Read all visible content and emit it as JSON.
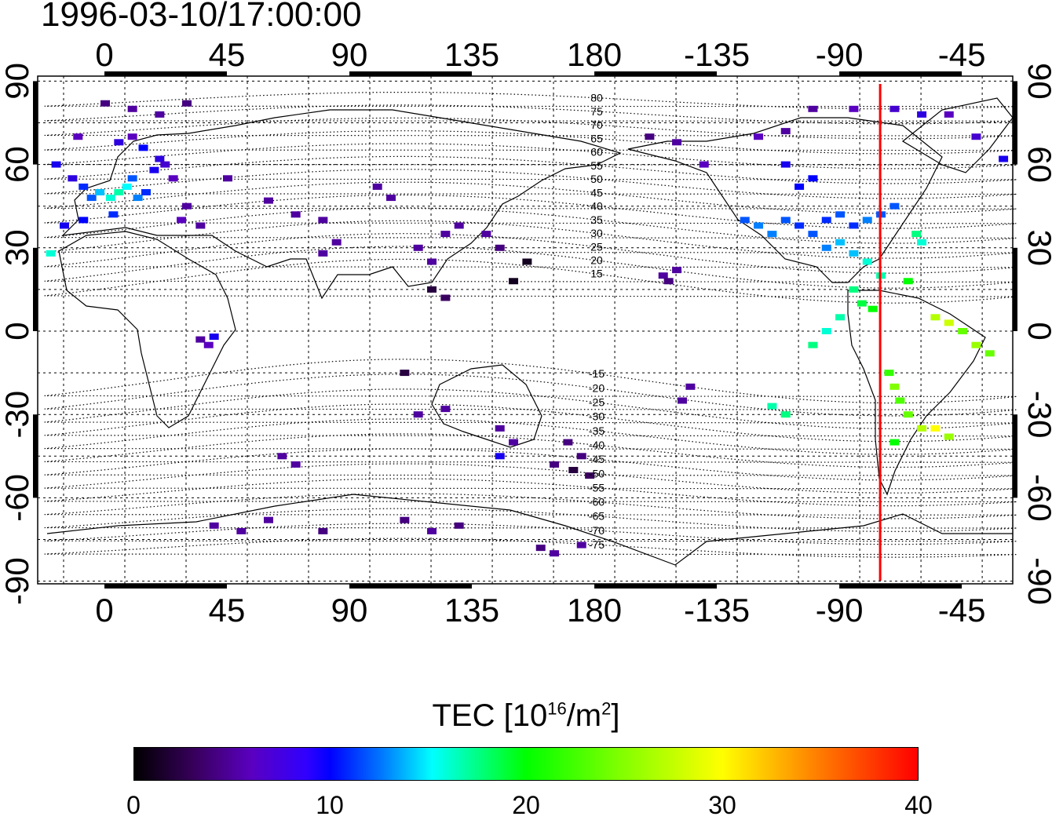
{
  "title": "1996-03-10/17:00:00",
  "chart_data": {
    "type": "heatmap",
    "title": "1996-03-10/17:00:00",
    "projection": "equirectangular",
    "x_ticks": [
      "0",
      "45",
      "90",
      "135",
      "180",
      "-135",
      "-90",
      "-45"
    ],
    "x_tick_values": [
      0,
      45,
      90,
      135,
      180,
      225,
      270,
      315
    ],
    "y_ticks": [
      "90",
      "60",
      "30",
      "0",
      "-30",
      "-60",
      "-90"
    ],
    "y_tick_values": [
      90,
      60,
      30,
      0,
      -30,
      -60,
      -90
    ],
    "lon_range": [
      -25,
      335
    ],
    "lat_range": [
      -90,
      90
    ],
    "marker_line_lon": -75,
    "marker_line_color": "#ff0000",
    "magnetic_contour_labels": [
      "80",
      "75",
      "70",
      "65",
      "60",
      "55",
      "50",
      "45",
      "40",
      "35",
      "30",
      "25",
      "20",
      "15",
      "-15",
      "-20",
      "-25",
      "-30",
      "-35",
      "-40",
      "-45",
      "-50",
      "-55",
      "-60",
      "-65",
      "-70",
      "-75"
    ],
    "magnetic_contour_values": [
      80,
      75,
      70,
      65,
      60,
      55,
      50,
      45,
      40,
      35,
      30,
      25,
      20,
      15,
      -15,
      -20,
      -25,
      -30,
      -35,
      -40,
      -45,
      -50,
      -55,
      -60,
      -65,
      -70,
      -75
    ],
    "tec_points": [
      [
        -18,
        60,
        9
      ],
      [
        -12,
        55,
        8
      ],
      [
        -8,
        52,
        11
      ],
      [
        -5,
        48,
        12
      ],
      [
        -2,
        50,
        14
      ],
      [
        2,
        48,
        16
      ],
      [
        5,
        50,
        17
      ],
      [
        8,
        52,
        15
      ],
      [
        10,
        55,
        12
      ],
      [
        12,
        48,
        13
      ],
      [
        15,
        50,
        11
      ],
      [
        18,
        58,
        9
      ],
      [
        20,
        62,
        8
      ],
      [
        22,
        60,
        7
      ],
      [
        25,
        55,
        6
      ],
      [
        14,
        66,
        10
      ],
      [
        10,
        70,
        6
      ],
      [
        5,
        68,
        8
      ],
      [
        -15,
        38,
        9
      ],
      [
        -20,
        28,
        16
      ],
      [
        28,
        40,
        6
      ],
      [
        30,
        45,
        5
      ],
      [
        35,
        38,
        5
      ],
      [
        3,
        42,
        11
      ],
      [
        -8,
        40,
        10
      ],
      [
        10,
        80,
        5
      ],
      [
        20,
        78,
        5
      ],
      [
        30,
        82,
        4
      ],
      [
        0,
        82,
        4
      ],
      [
        -10,
        70,
        6
      ],
      [
        40,
        -2,
        9
      ],
      [
        38,
        -5,
        6
      ],
      [
        35,
        -3,
        5
      ],
      [
        45,
        55,
        5
      ],
      [
        60,
        47,
        5
      ],
      [
        70,
        42,
        5
      ],
      [
        80,
        40,
        5
      ],
      [
        100,
        52,
        5
      ],
      [
        105,
        48,
        5
      ],
      [
        85,
        32,
        5
      ],
      [
        80,
        28,
        5
      ],
      [
        115,
        30,
        5
      ],
      [
        120,
        25,
        5
      ],
      [
        125,
        35,
        5
      ],
      [
        130,
        38,
        5
      ],
      [
        140,
        35,
        5
      ],
      [
        145,
        30,
        4
      ],
      [
        120,
        15,
        2
      ],
      [
        125,
        12,
        3
      ],
      [
        150,
        18,
        1
      ],
      [
        155,
        25,
        1
      ],
      [
        110,
        -15,
        2
      ],
      [
        115,
        -30,
        5
      ],
      [
        125,
        -28,
        5
      ],
      [
        145,
        -35,
        5
      ],
      [
        150,
        -40,
        5
      ],
      [
        145,
        -45,
        9
      ],
      [
        170,
        -40,
        4
      ],
      [
        175,
        -45,
        4
      ],
      [
        172,
        -50,
        2
      ],
      [
        178,
        -52,
        3
      ],
      [
        165,
        -48,
        4
      ],
      [
        70,
        -48,
        5
      ],
      [
        65,
        -45,
        5
      ],
      [
        40,
        -70,
        5
      ],
      [
        50,
        -72,
        5
      ],
      [
        60,
        -68,
        5
      ],
      [
        80,
        -72,
        4
      ],
      [
        110,
        -68,
        4
      ],
      [
        120,
        -72,
        5
      ],
      [
        130,
        -70,
        4
      ],
      [
        160,
        -78,
        4
      ],
      [
        175,
        -77,
        5
      ],
      [
        165,
        -80,
        5
      ],
      [
        205,
        20,
        5
      ],
      [
        210,
        22,
        5
      ],
      [
        207,
        18,
        4
      ],
      [
        215,
        -20,
        5
      ],
      [
        212,
        -25,
        5
      ],
      [
        -160,
        70,
        4
      ],
      [
        -150,
        68,
        5
      ],
      [
        -140,
        60,
        6
      ],
      [
        -120,
        70,
        6
      ],
      [
        -110,
        72,
        5
      ],
      [
        -100,
        80,
        5
      ],
      [
        -85,
        80,
        6
      ],
      [
        -70,
        80,
        7
      ],
      [
        -60,
        78,
        8
      ],
      [
        -50,
        78,
        6
      ],
      [
        -40,
        70,
        7
      ],
      [
        -30,
        62,
        9
      ],
      [
        -110,
        60,
        9
      ],
      [
        -100,
        55,
        10
      ],
      [
        -105,
        52,
        10
      ],
      [
        -125,
        40,
        12
      ],
      [
        -120,
        38,
        13
      ],
      [
        -115,
        35,
        13
      ],
      [
        -110,
        40,
        12
      ],
      [
        -105,
        38,
        11
      ],
      [
        -100,
        35,
        12
      ],
      [
        -95,
        40,
        11
      ],
      [
        -90,
        42,
        12
      ],
      [
        -85,
        38,
        11
      ],
      [
        -80,
        40,
        13
      ],
      [
        -75,
        42,
        12
      ],
      [
        -70,
        45,
        12
      ],
      [
        -95,
        30,
        13
      ],
      [
        -90,
        32,
        14
      ],
      [
        -85,
        28,
        14
      ],
      [
        -80,
        25,
        16
      ],
      [
        -75,
        20,
        17
      ],
      [
        -65,
        18,
        20
      ],
      [
        -60,
        32,
        16
      ],
      [
        -62,
        35,
        18
      ],
      [
        -85,
        15,
        18
      ],
      [
        -82,
        10,
        19
      ],
      [
        -78,
        8,
        20
      ],
      [
        -90,
        5,
        17
      ],
      [
        -95,
        0,
        16
      ],
      [
        -100,
        -5,
        18
      ],
      [
        -55,
        5,
        27
      ],
      [
        -50,
        3,
        28
      ],
      [
        -45,
        0,
        24
      ],
      [
        -40,
        -5,
        26
      ],
      [
        -35,
        -8,
        24
      ],
      [
        -72,
        -15,
        22
      ],
      [
        -70,
        -20,
        25
      ],
      [
        -68,
        -25,
        23
      ],
      [
        -65,
        -30,
        24
      ],
      [
        -60,
        -35,
        27
      ],
      [
        -55,
        -35,
        30
      ],
      [
        -50,
        -38,
        26
      ],
      [
        -70,
        -40,
        20
      ],
      [
        -110,
        -30,
        18
      ],
      [
        -115,
        -27,
        17
      ]
    ]
  },
  "colorbar": {
    "title_prefix": "TEC  [10",
    "title_exp1": "16",
    "title_mid": "/m",
    "title_exp2": "2",
    "title_suffix": "]",
    "min": 0,
    "max": 40,
    "ticks": [
      "0",
      "10",
      "20",
      "30",
      "40"
    ]
  }
}
